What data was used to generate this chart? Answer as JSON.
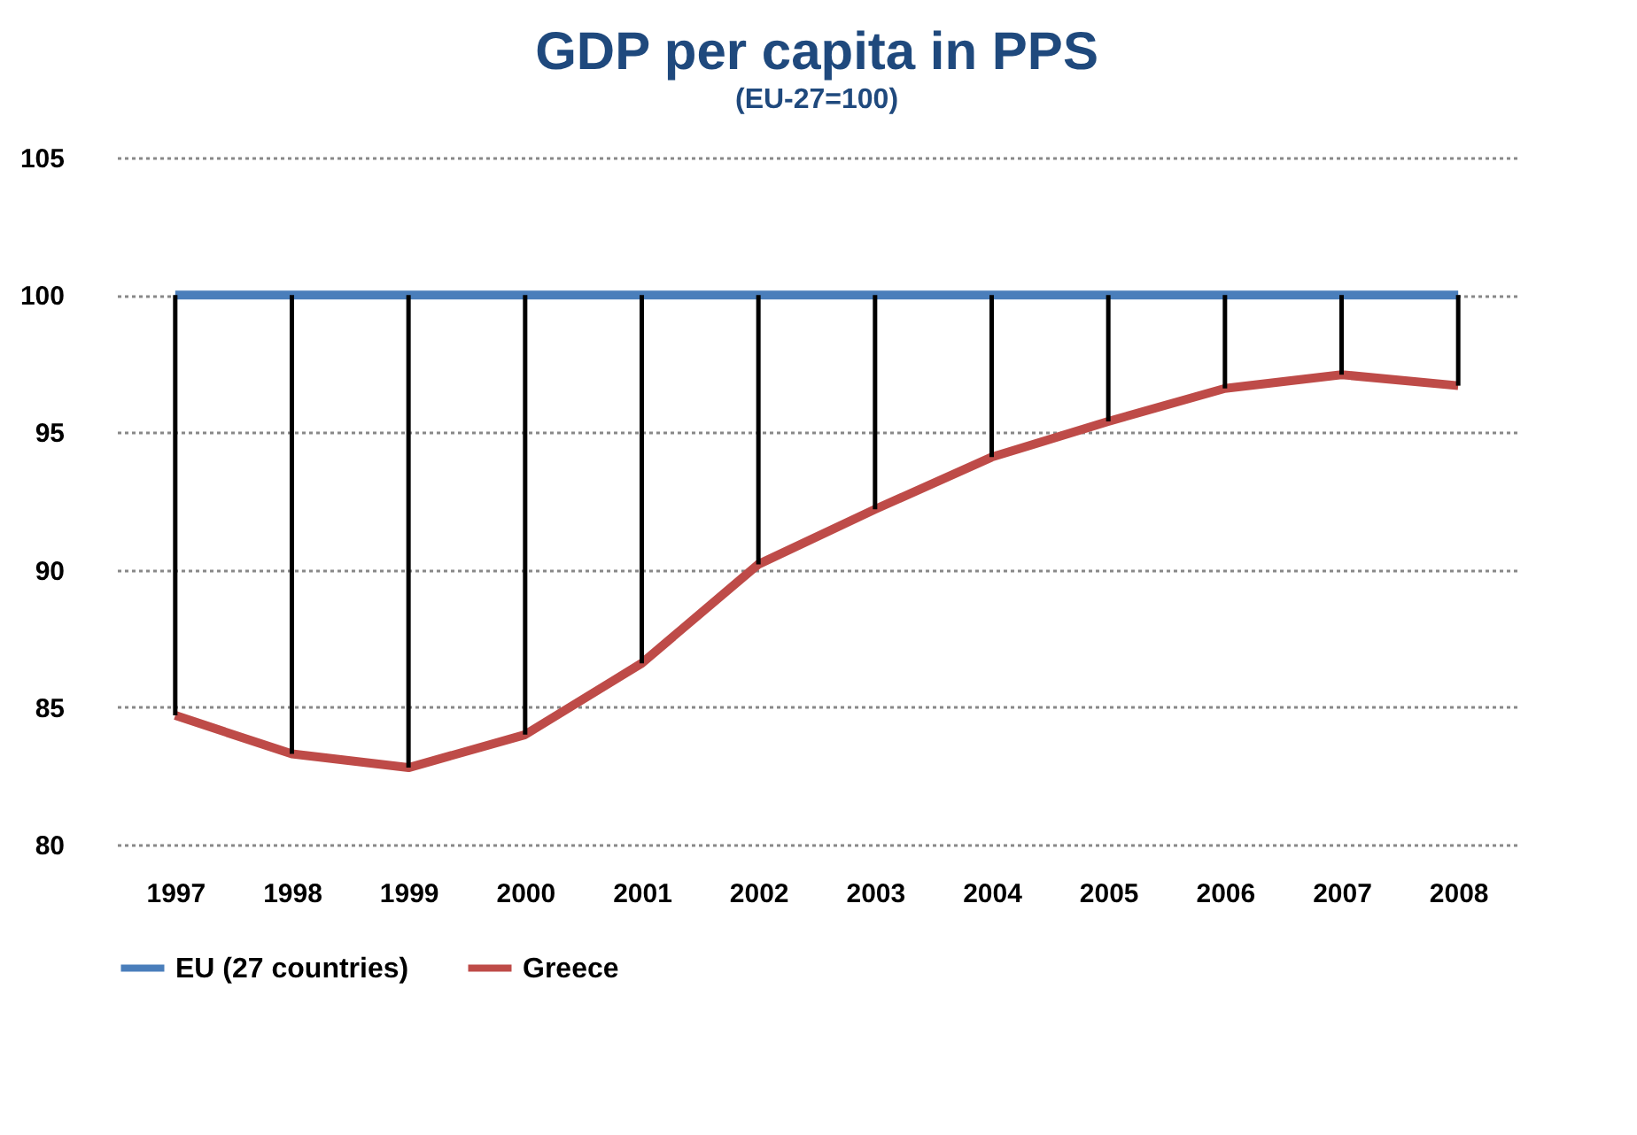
{
  "chart_data": {
    "type": "line",
    "title": "GDP per capita in PPS",
    "subtitle": "(EU-27=100)",
    "categories": [
      "1997",
      "1998",
      "1999",
      "2000",
      "2001",
      "2002",
      "2003",
      "2004",
      "2005",
      "2006",
      "2007",
      "2008"
    ],
    "series": [
      {
        "name": "EU (27 countries)",
        "color": "#4a7ebb",
        "values": [
          100,
          100,
          100,
          100,
          100,
          100,
          100,
          100,
          100,
          100,
          100,
          100
        ]
      },
      {
        "name": "Greece",
        "color": "#be4b48",
        "values": [
          84.7,
          83.3,
          82.8,
          84.0,
          86.6,
          90.2,
          92.2,
          94.1,
          95.4,
          96.6,
          97.1,
          96.7
        ],
        "errors": [
          [
            84.7,
            100
          ],
          [
            83.3,
            100
          ],
          [
            82.8,
            100
          ],
          [
            84.0,
            100
          ],
          [
            86.6,
            100
          ],
          [
            90.2,
            100
          ],
          [
            92.2,
            100
          ],
          [
            94.1,
            100
          ],
          [
            95.4,
            100
          ],
          [
            96.6,
            100
          ],
          [
            97.1,
            100
          ],
          [
            96.7,
            100
          ]
        ]
      }
    ],
    "ylim": [
      80,
      105
    ],
    "yticks": [
      80,
      85,
      90,
      95,
      100,
      105
    ],
    "grid": "y",
    "legend": "bottom",
    "marker": "none",
    "line_style": "solid"
  }
}
